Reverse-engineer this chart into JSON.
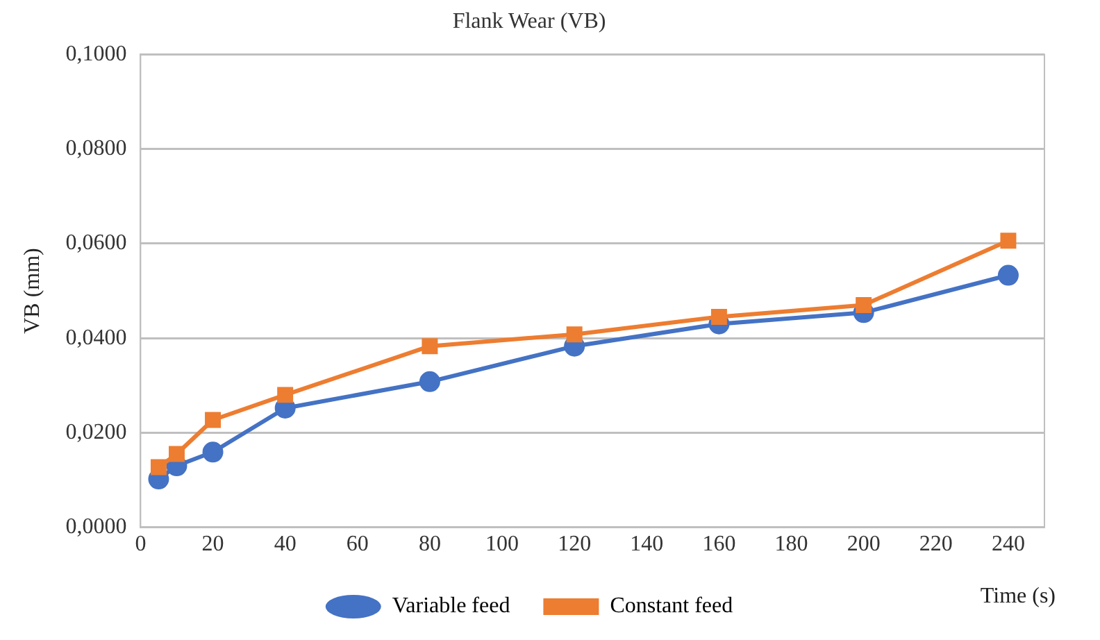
{
  "chart_data": {
    "type": "line",
    "title": "Flank Wear (VB)",
    "xlabel": "Time (s)",
    "ylabel": "VB (mm)",
    "x": [
      5,
      10,
      20,
      40,
      80,
      120,
      160,
      200,
      240
    ],
    "series": [
      {
        "name": "Variable feed",
        "color": "#4472c4",
        "marker": "circle",
        "values": [
          0.0102,
          0.013,
          0.0159,
          0.0252,
          0.0308,
          0.0383,
          0.043,
          0.0454,
          0.0533
        ]
      },
      {
        "name": "Constant feed",
        "color": "#ed7d31",
        "marker": "square",
        "values": [
          0.0127,
          0.0155,
          0.0227,
          0.028,
          0.0383,
          0.0408,
          0.0445,
          0.047,
          0.0606
        ]
      }
    ],
    "xlim": [
      0,
      250
    ],
    "xticks": [
      0,
      20,
      40,
      60,
      80,
      100,
      120,
      140,
      160,
      180,
      200,
      220,
      240
    ],
    "ylim": [
      0,
      0.1
    ],
    "yticks": [
      {
        "value": 0,
        "label": "0,0000"
      },
      {
        "value": 0.02,
        "label": "0,0200"
      },
      {
        "value": 0.04,
        "label": "0,0400"
      },
      {
        "value": 0.06,
        "label": "0,0600"
      },
      {
        "value": 0.08,
        "label": "0,0800"
      },
      {
        "value": 0.1,
        "label": "0,1000"
      }
    ],
    "grid": "y",
    "legend": "bottom",
    "line_style": "solid"
  }
}
